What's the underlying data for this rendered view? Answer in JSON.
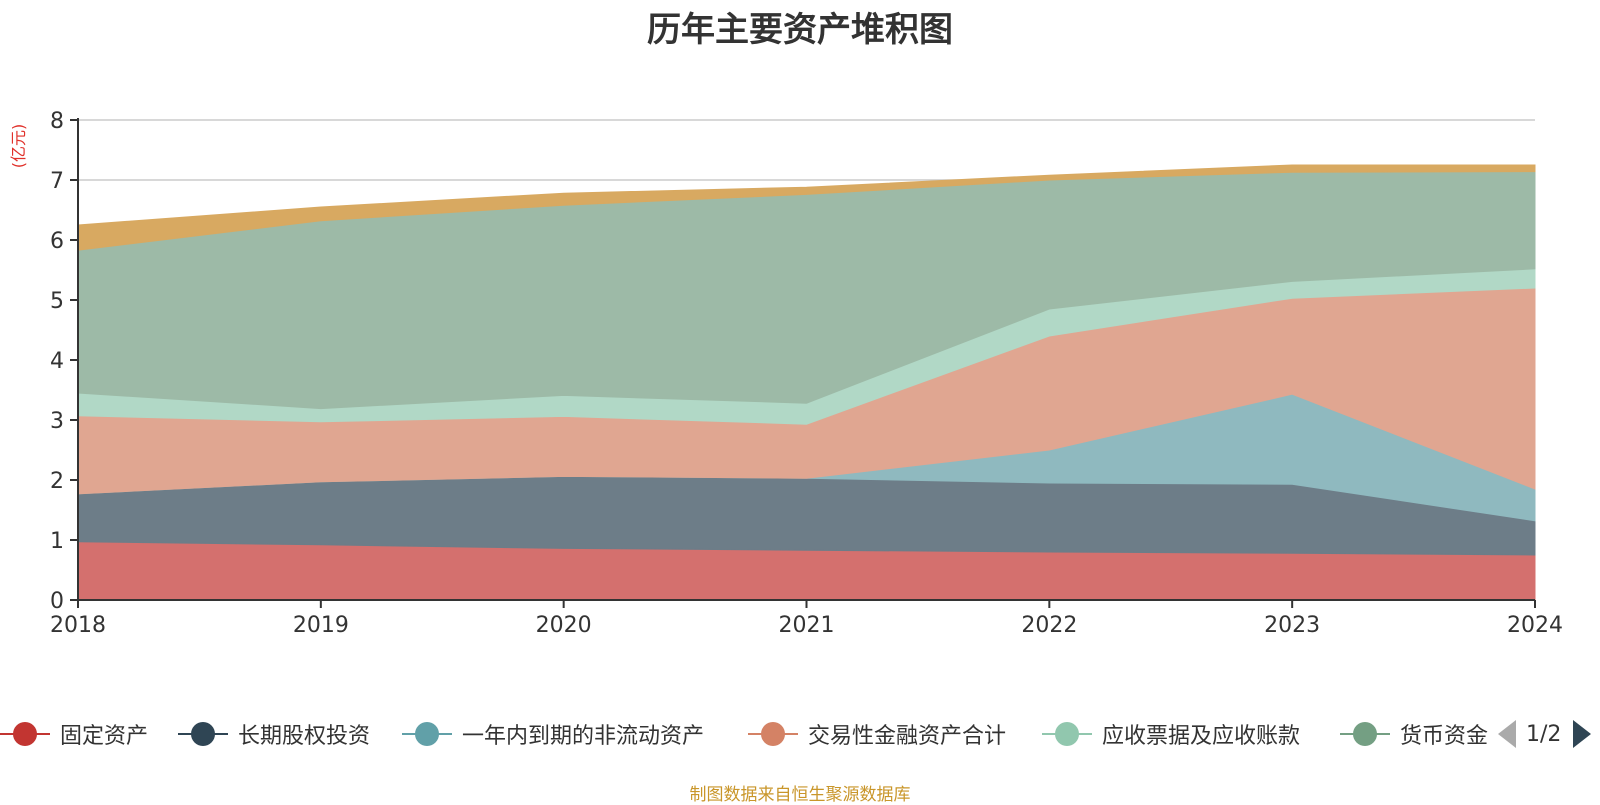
{
  "title": "历年主要资产堆积图",
  "unit_label": "(亿元)",
  "source_note": "制图数据来自恒生聚源数据库",
  "pager": {
    "text": "1/2",
    "prev_icon": "triangle-left-icon",
    "next_icon": "triangle-right-icon"
  },
  "legend": [
    {
      "label": "固定资产",
      "color": "#c23531"
    },
    {
      "label": "长期股权投资",
      "color": "#2f4554"
    },
    {
      "label": "一年内到期的非流动资产",
      "color": "#61a0a8"
    },
    {
      "label": "交易性金融资产合计",
      "color": "#d48265"
    },
    {
      "label": "应收票据及应收账款",
      "color": "#91c7ae"
    },
    {
      "label": "货币资金",
      "color": "#749f83"
    }
  ],
  "chart_data": {
    "type": "area",
    "stacked": true,
    "title": "历年主要资产堆积图",
    "ylabel": "(亿元)",
    "categories": [
      "2018",
      "2019",
      "2020",
      "2021",
      "2022",
      "2023",
      "2024"
    ],
    "ylim": [
      0,
      8
    ],
    "yticks": [
      0,
      1,
      2,
      3,
      4,
      5,
      6,
      7,
      8
    ],
    "grid": true,
    "legend_position": "bottom",
    "series": [
      {
        "name": "固定资产",
        "color": "#d4706e",
        "values": [
          0.97,
          0.92,
          0.86,
          0.83,
          0.8,
          0.78,
          0.75
        ]
      },
      {
        "name": "长期股权投资",
        "color": "#6d7d88",
        "values": [
          0.8,
          1.05,
          1.2,
          1.2,
          1.15,
          1.15,
          0.57
        ]
      },
      {
        "name": "一年内到期的非流动资产",
        "color": "#8fb9bf",
        "values": [
          0.0,
          0.0,
          0.0,
          0.0,
          0.55,
          1.5,
          0.53
        ]
      },
      {
        "name": "交易性金融资产合计",
        "color": "#e0a691",
        "values": [
          1.3,
          1.0,
          1.0,
          0.9,
          1.9,
          1.6,
          3.35
        ]
      },
      {
        "name": "应收票据及应收账款",
        "color": "#b1d8c6",
        "values": [
          0.38,
          0.22,
          0.35,
          0.35,
          0.45,
          0.28,
          0.32
        ]
      },
      {
        "name": "货币资金",
        "color": "#9dbaa7",
        "values": [
          2.38,
          3.13,
          3.17,
          3.48,
          2.15,
          1.82,
          1.62
        ]
      },
      {
        "name": "",
        "color": "#d8a961",
        "values": [
          0.42,
          0.23,
          0.2,
          0.12,
          0.08,
          0.12,
          0.11
        ]
      }
    ]
  }
}
